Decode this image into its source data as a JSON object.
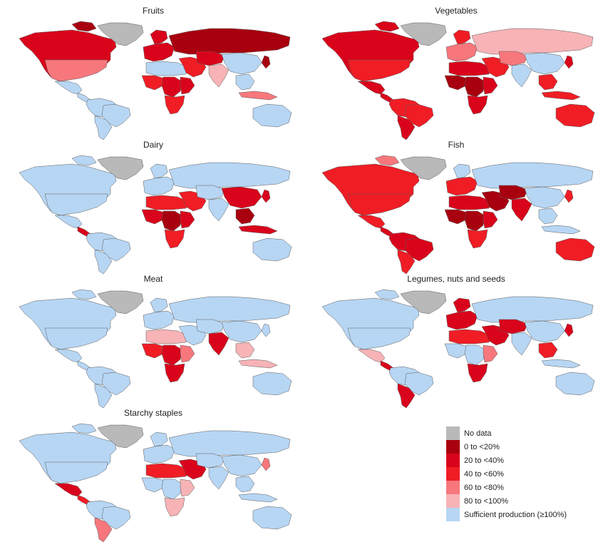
{
  "maps": [
    {
      "id": "fruits",
      "title": "Fruits",
      "regions": {
        "north_america": "c2",
        "greenland": "nodata",
        "arctic_islands": "c1",
        "usa": "c4",
        "mexico": "sufficient",
        "central_america": "sufficient",
        "south_america": "sufficient",
        "brazil": "sufficient",
        "southern_cone": "sufficient",
        "europe": "c2",
        "scandinavia": "c2",
        "russia": "c1",
        "middle_east": "c3",
        "north_africa": "sufficient",
        "west_africa": "c3",
        "central_africa": "c2",
        "east_africa": "c2",
        "southern_africa": "c3",
        "central_asia": "c2",
        "south_asia": "c5",
        "china": "sufficient",
        "southeast_asia": "sufficient",
        "japan": "c1",
        "indonesia": "c4",
        "australia": "sufficient"
      }
    },
    {
      "id": "vegetables",
      "title": "Vegetables",
      "regions": {
        "north_america": "c2",
        "greenland": "nodata",
        "arctic_islands": "c2",
        "usa": "c3",
        "mexico": "c2",
        "central_america": "c2",
        "south_america": "c3",
        "brazil": "c3",
        "southern_cone": "c2",
        "europe": "c4",
        "scandinavia": "c3",
        "russia": "c5",
        "middle_east": "c3",
        "north_africa": "c2",
        "west_africa": "c1",
        "central_africa": "c1",
        "east_africa": "c2",
        "southern_africa": "c2",
        "central_asia": "c4",
        "south_asia": "sufficient",
        "china": "sufficient",
        "southeast_asia": "c3",
        "japan": "c2",
        "indonesia": "c3",
        "australia": "c3"
      }
    },
    {
      "id": "dairy",
      "title": "Dairy",
      "regions": {
        "north_america": "sufficient",
        "greenland": "nodata",
        "arctic_islands": "sufficient",
        "usa": "sufficient",
        "mexico": "sufficient",
        "central_america": "c2",
        "south_america": "sufficient",
        "brazil": "sufficient",
        "southern_cone": "sufficient",
        "europe": "sufficient",
        "scandinavia": "sufficient",
        "russia": "sufficient",
        "middle_east": "c3",
        "north_africa": "c3",
        "west_africa": "c2",
        "central_africa": "c1",
        "east_africa": "c2",
        "southern_africa": "c3",
        "central_asia": "sufficient",
        "south_asia": "sufficient",
        "china": "c2",
        "southeast_asia": "c1",
        "japan": "c2",
        "indonesia": "c2",
        "australia": "sufficient"
      }
    },
    {
      "id": "fish",
      "title": "Fish",
      "regions": {
        "north_america": "c3",
        "greenland": "nodata",
        "arctic_islands": "c4",
        "usa": "c3",
        "mexico": "c3",
        "central_america": "c2",
        "south_america": "c2",
        "brazil": "c2",
        "southern_cone": "c3",
        "europe": "c3",
        "scandinavia": "sufficient",
        "russia": "sufficient",
        "middle_east": "c1",
        "north_africa": "c2",
        "west_africa": "c1",
        "central_africa": "c1",
        "east_africa": "c2",
        "southern_africa": "c3",
        "central_asia": "c1",
        "south_asia": "c2",
        "china": "sufficient",
        "southeast_asia": "sufficient",
        "japan": "c3",
        "indonesia": "sufficient",
        "australia": "c3"
      }
    },
    {
      "id": "meat",
      "title": "Meat",
      "regions": {
        "north_america": "sufficient",
        "greenland": "nodata",
        "arctic_islands": "sufficient",
        "usa": "sufficient",
        "mexico": "sufficient",
        "central_america": "sufficient",
        "south_america": "sufficient",
        "brazil": "sufficient",
        "southern_cone": "sufficient",
        "europe": "sufficient",
        "scandinavia": "sufficient",
        "russia": "sufficient",
        "middle_east": "sufficient",
        "north_africa": "c5",
        "west_africa": "c3",
        "central_africa": "c2",
        "east_africa": "c4",
        "southern_africa": "c2",
        "central_asia": "sufficient",
        "south_asia": "c2",
        "china": "sufficient",
        "southeast_asia": "c5",
        "japan": "sufficient",
        "indonesia": "c5",
        "australia": "sufficient"
      }
    },
    {
      "id": "legumes",
      "title": "Legumes, nuts and seeds",
      "regions": {
        "north_america": "sufficient",
        "greenland": "nodata",
        "arctic_islands": "sufficient",
        "usa": "sufficient",
        "mexico": "c5",
        "central_america": "c2",
        "south_america": "sufficient",
        "brazil": "sufficient",
        "southern_cone": "c2",
        "europe": "c2",
        "scandinavia": "c2",
        "russia": "sufficient",
        "middle_east": "c2",
        "north_africa": "c3",
        "west_africa": "sufficient",
        "central_africa": "sufficient",
        "east_africa": "c4",
        "southern_africa": "c2",
        "central_asia": "c2",
        "south_asia": "sufficient",
        "china": "sufficient",
        "southeast_asia": "c3",
        "japan": "c2",
        "indonesia": "sufficient",
        "australia": "sufficient"
      }
    },
    {
      "id": "starchy",
      "title": "Starchy staples",
      "regions": {
        "north_america": "sufficient",
        "greenland": "nodata",
        "arctic_islands": "sufficient",
        "usa": "sufficient",
        "mexico": "c2",
        "central_america": "c3",
        "south_america": "sufficient",
        "brazil": "sufficient",
        "southern_cone": "c4",
        "europe": "sufficient",
        "scandinavia": "sufficient",
        "russia": "sufficient",
        "middle_east": "c2",
        "north_africa": "c3",
        "west_africa": "sufficient",
        "central_africa": "sufficient",
        "east_africa": "c5",
        "southern_africa": "c5",
        "central_asia": "sufficient",
        "south_asia": "sufficient",
        "china": "sufficient",
        "southeast_asia": "sufficient",
        "japan": "c4",
        "indonesia": "sufficient",
        "australia": "sufficient"
      }
    }
  ],
  "legend": {
    "items": [
      {
        "key": "nodata",
        "label": "No data"
      },
      {
        "key": "c1",
        "label": "0 to <20%"
      },
      {
        "key": "c2",
        "label": "20 to <40%"
      },
      {
        "key": "c3",
        "label": "40 to <60%"
      },
      {
        "key": "c4",
        "label": "60 to <80%"
      },
      {
        "key": "c5",
        "label": "80 to <100%"
      },
      {
        "key": "sufficient",
        "label": "Sufficient production (≥100%)"
      }
    ]
  },
  "colors": {
    "nodata": "#b9b9b9",
    "c1": "#a8000f",
    "c2": "#d9041b",
    "c3": "#f01d25",
    "c4": "#f7777c",
    "c5": "#f7b3b6",
    "sufficient": "#b7d6f4"
  }
}
